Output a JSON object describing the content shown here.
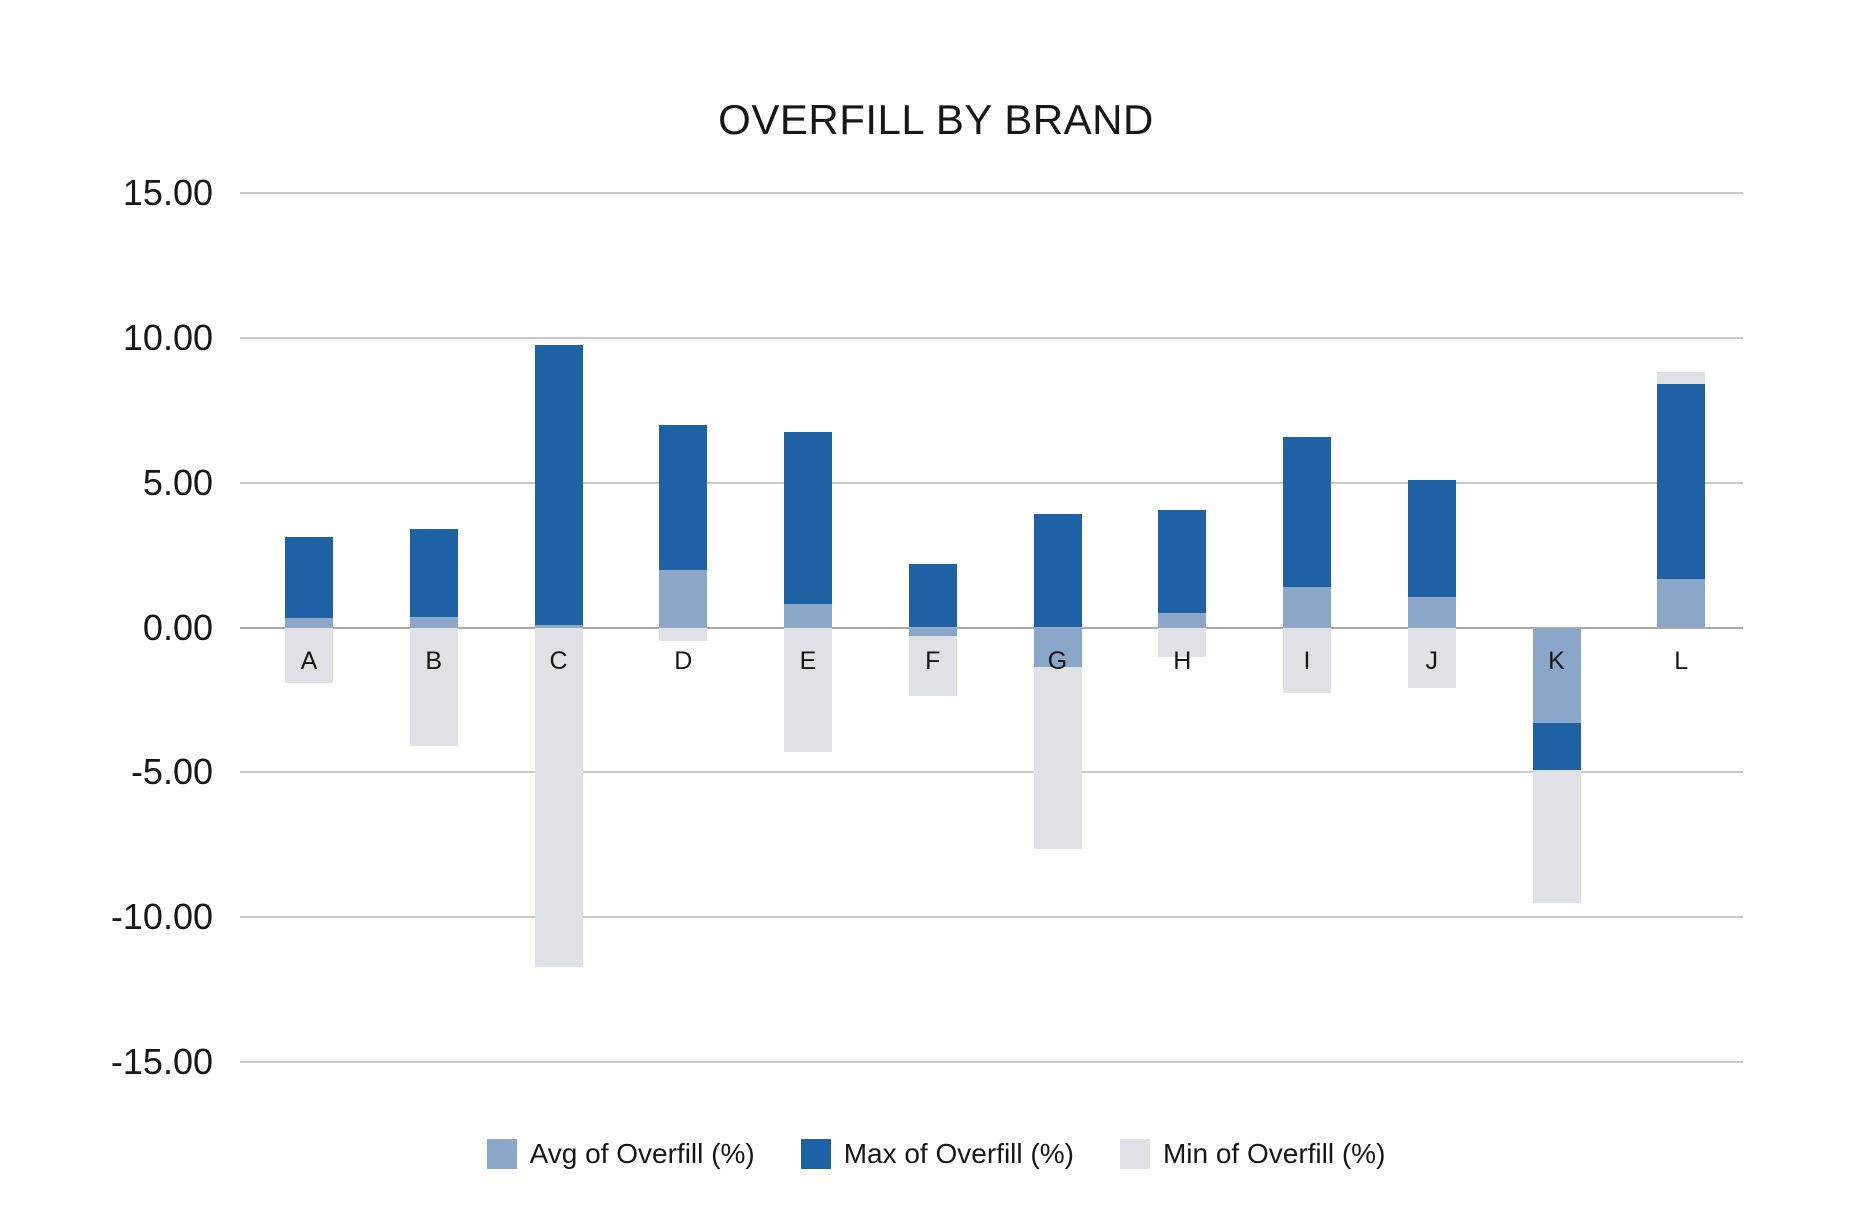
{
  "title": "OVERFILL BY BRAND",
  "colors": {
    "avg": "#8AA7CA",
    "max": "#1E62A5",
    "min": "#E0E1E6",
    "gridline": "#C9C9CD",
    "zero_line": "#A8A9AD",
    "text": "#161616"
  },
  "chart_data": {
    "type": "bar",
    "stacked": true,
    "title": "OVERFILL BY BRAND",
    "categories": [
      "A",
      "B",
      "C",
      "D",
      "E",
      "F",
      "G",
      "H",
      "I",
      "J",
      "K",
      "L"
    ],
    "series": [
      {
        "name": "Avg of Overfill (%)",
        "color": "#8AA7CA",
        "values": [
          0.33,
          0.36,
          0.1,
          2.0,
          0.8,
          -0.3,
          -1.37,
          0.49,
          1.41,
          1.06,
          -3.31,
          1.68
        ]
      },
      {
        "name": "Max of Overfill (%)",
        "color": "#1E62A5",
        "values": [
          2.8,
          3.05,
          9.66,
          5.0,
          5.94,
          2.2,
          3.93,
          3.55,
          5.18,
          4.04,
          -1.61,
          6.74
        ]
      },
      {
        "name": "Min of Overfill (%)",
        "color": "#E0E1E6",
        "values": [
          -1.9,
          -4.08,
          -11.72,
          -0.45,
          -4.3,
          -2.05,
          -6.27,
          -1.03,
          -2.27,
          -2.1,
          -4.59,
          0.4
        ]
      }
    ],
    "xlabel": "",
    "ylabel": "",
    "ylim": [
      -15,
      15
    ],
    "ytick_step": 5,
    "yticks": [
      15,
      10,
      5,
      0,
      -5,
      -10,
      -15
    ],
    "ytick_labels": [
      "15.00",
      "10.00",
      "5.00",
      "0.00",
      "-5.00",
      "-10.00",
      "-15.00"
    ],
    "grid": true,
    "legend_position": "bottom",
    "legend_entries": [
      "Avg of Overfill (%)",
      "Max of Overfill (%)",
      "Min of Overfill (%)"
    ]
  }
}
